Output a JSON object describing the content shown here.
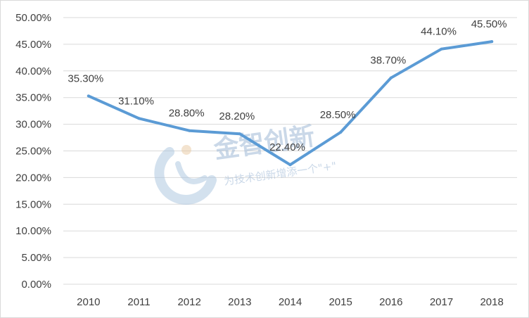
{
  "chart_data": {
    "type": "line",
    "categories": [
      "2010",
      "2011",
      "2012",
      "2013",
      "2014",
      "2015",
      "2016",
      "2017",
      "2018"
    ],
    "series": [
      {
        "values": [
          35.3,
          31.1,
          28.8,
          28.2,
          22.4,
          28.5,
          38.7,
          44.1,
          45.5
        ],
        "data_labels": [
          "35.30%",
          "31.10%",
          "28.80%",
          "28.20%",
          "22.40%",
          "28.50%",
          "38.70%",
          "44.10%",
          "45.50%"
        ],
        "color": "#5b9bd5"
      }
    ],
    "y_ticks": [
      "0.00%",
      "5.00%",
      "10.00%",
      "15.00%",
      "20.00%",
      "25.00%",
      "30.00%",
      "35.00%",
      "40.00%",
      "45.00%",
      "50.00%"
    ],
    "ylim": [
      0,
      50
    ],
    "y_step": 5,
    "title": "",
    "xlabel": "",
    "ylabel": "",
    "grid": true,
    "gridline_color": "#d9d9d9",
    "legend": "none"
  },
  "watermark": {
    "brand": "金智创新",
    "slogan": "为技术创新增添一个\"+\"",
    "color": "#9fb9d6"
  }
}
